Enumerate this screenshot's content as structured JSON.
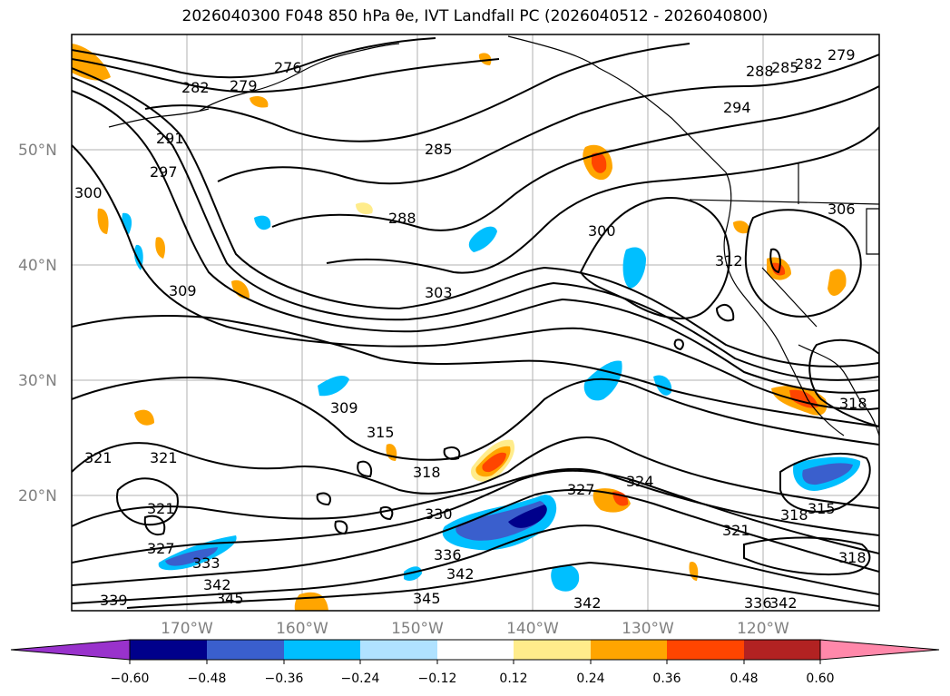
{
  "title": "2026040300 F048 850 hPa θe, IVT Landfall PC (2026040512 - 2026040800)",
  "map": {
    "lon_ticks": [
      "170°W",
      "160°W",
      "150°W",
      "140°W",
      "130°W",
      "120°W"
    ],
    "lat_ticks": [
      "50°N",
      "40°N",
      "30°N",
      "20°N"
    ],
    "lon_range": [
      -180,
      -110
    ],
    "lat_range": [
      10,
      60
    ],
    "contour_labels": [
      "276",
      "279",
      "282",
      "291",
      "297",
      "300",
      "285",
      "288",
      "303",
      "309",
      "294",
      "288",
      "285",
      "282",
      "279",
      "300",
      "306",
      "312",
      "309",
      "315",
      "318",
      "318",
      "321",
      "321",
      "321",
      "327",
      "333",
      "342",
      "345",
      "339",
      "330",
      "336",
      "342",
      "345",
      "327",
      "324",
      "321",
      "318",
      "315",
      "318",
      "342",
      "336",
      "342"
    ]
  },
  "colorbar": {
    "colors": [
      "#9932cc",
      "#00008b",
      "#3a5fcd",
      "#00bfff",
      "#b0e2ff",
      "#ffffff",
      "#ffec8b",
      "#ffa500",
      "#ff4500",
      "#b22222",
      "#ff88aa"
    ],
    "tick_labels": [
      "−0.60",
      "−0.48",
      "−0.36",
      "−0.24",
      "−0.12",
      "0.12",
      "0.24",
      "0.36",
      "0.48",
      "0.60"
    ]
  }
}
